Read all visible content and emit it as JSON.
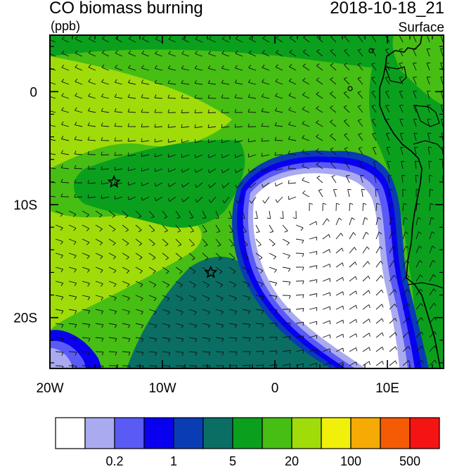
{
  "header": {
    "title": "CO biomass burning",
    "units": "(ppb)",
    "datetime": "2018-10-18_21",
    "level": "Surface"
  },
  "map": {
    "lon_range": [
      -20,
      15
    ],
    "lat_range": [
      -24.5,
      5
    ],
    "lon_ticks": [
      {
        "value": -20,
        "label": "20W"
      },
      {
        "value": -10,
        "label": "10W"
      },
      {
        "value": 0,
        "label": "0"
      },
      {
        "value": 10,
        "label": "10E"
      }
    ],
    "lat_ticks": [
      {
        "value": 0,
        "label": "0"
      },
      {
        "value": -10,
        "label": "10S"
      },
      {
        "value": -20,
        "label": "20S"
      }
    ],
    "markers": [
      {
        "name": "star-1",
        "lon": -14.3,
        "lat": -8.0
      },
      {
        "name": "star-2",
        "lon": -5.7,
        "lat": -16.0
      }
    ],
    "wind_barbs": "dense field of wind barbs over entire domain"
  },
  "colorbar": {
    "colors": [
      "#ffffff",
      "#aaaaf0",
      "#5a5af5",
      "#0a00f0",
      "#0a3cb4",
      "#0a6e64",
      "#0aa01e",
      "#46be14",
      "#a0dc0a",
      "#f0f00a",
      "#f5aa05",
      "#f55a05",
      "#f51414"
    ],
    "labels": [
      "0.2",
      "1",
      "5",
      "20",
      "100",
      "500"
    ]
  },
  "palette": {
    "white": "#ffffff",
    "lavender": "#aaaaf0",
    "medblue": "#5a5af5",
    "blue": "#0a00f0",
    "navy": "#0a3cb4",
    "teal": "#0a6e64",
    "green": "#0aa01e",
    "lime": "#46be14",
    "yellowgreen": "#a0dc0a"
  }
}
